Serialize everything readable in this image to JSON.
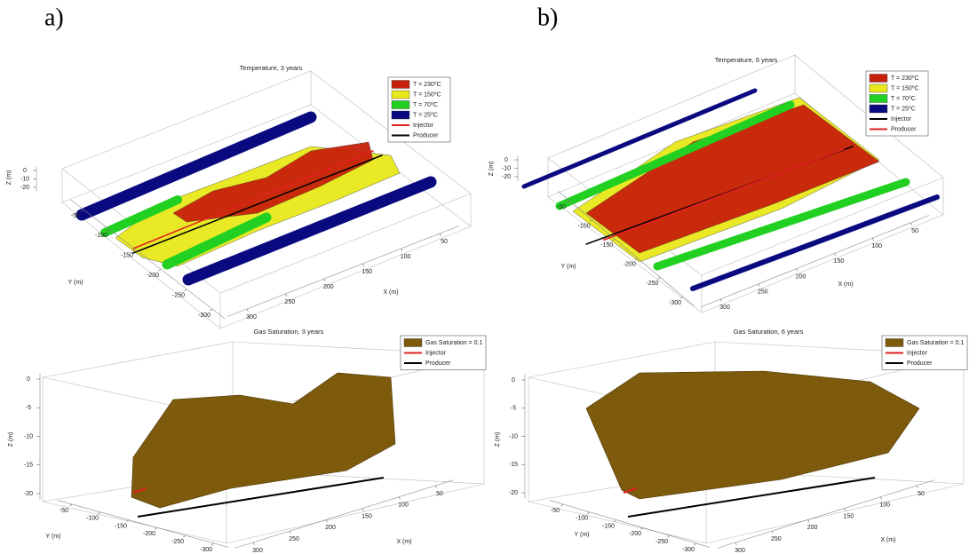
{
  "panel_labels": [
    "a)",
    "b)"
  ],
  "chart_data": [
    {
      "type": "isosurface",
      "title": "Temperature, 3 years",
      "xlabel": "X (m)",
      "ylabel": "Y (m)",
      "zlabel": "Z (m)",
      "xlim": [
        25,
        325
      ],
      "xticks": [
        50,
        100,
        150,
        200,
        250,
        300
      ],
      "ylim": [
        -325,
        -25
      ],
      "yticks": [
        -300,
        -250,
        -200,
        -150,
        -100,
        -50
      ],
      "zlim": [
        -25,
        5
      ],
      "zticks": [
        -20,
        -10,
        0
      ],
      "series": [
        {
          "name": "T = 230⁰C",
          "color": "#c8200a"
        },
        {
          "name": "T = 150⁰C",
          "color": "#e8e81a"
        },
        {
          "name": "T = 70⁰C",
          "color": "#22d022"
        },
        {
          "name": "T = 25⁰C",
          "color": "#0a0a80"
        },
        {
          "name": "Injector",
          "color": "#e02020"
        },
        {
          "name": "Producer",
          "color": "#000000"
        }
      ]
    },
    {
      "type": "isosurface",
      "title": "Temperature, 6 years",
      "xlabel": "X (m)",
      "ylabel": "Y (m)",
      "zlabel": "Z (m)",
      "xlim": [
        25,
        325
      ],
      "xticks": [
        50,
        100,
        150,
        200,
        250,
        300
      ],
      "ylim": [
        -325,
        -25
      ],
      "yticks": [
        -300,
        -250,
        -200,
        -150,
        -100,
        -50
      ],
      "zlim": [
        -25,
        5
      ],
      "zticks": [
        -20,
        -10,
        0
      ],
      "series": [
        {
          "name": "T = 230⁰C",
          "color": "#c8200a"
        },
        {
          "name": "T = 150⁰C",
          "color": "#e8e81a"
        },
        {
          "name": "T = 70⁰C",
          "color": "#22d022"
        },
        {
          "name": "T = 25⁰C",
          "color": "#0a0a80"
        },
        {
          "name": "Injector",
          "color": "#000000"
        },
        {
          "name": "Producer",
          "color": "#e02020"
        }
      ]
    },
    {
      "type": "isosurface",
      "title": "Gas Saturation, 3 years",
      "xlabel": "X (m)",
      "ylabel": "Y (m)",
      "zlabel": "Z (m)",
      "xlim": [
        25,
        325
      ],
      "xticks": [
        50,
        100,
        150,
        200,
        250,
        300
      ],
      "ylim": [
        -325,
        -25
      ],
      "yticks": [
        -300,
        -250,
        -200,
        -150,
        -100,
        -50
      ],
      "zlim": [
        -21,
        1
      ],
      "zticks": [
        -20,
        -15,
        -10,
        -5,
        0
      ],
      "series": [
        {
          "name": "Gas Saturation = 0.1",
          "color": "#7d5a0c"
        },
        {
          "name": "Injector",
          "color": "#e02020"
        },
        {
          "name": "Producer",
          "color": "#000000"
        }
      ]
    },
    {
      "type": "isosurface",
      "title": "Gas Saturation, 6 years",
      "xlabel": "X (m)",
      "ylabel": "Y (m)",
      "zlabel": "Z (m)",
      "xlim": [
        25,
        325
      ],
      "xticks": [
        50,
        100,
        150,
        200,
        250,
        300
      ],
      "ylim": [
        -325,
        -25
      ],
      "yticks": [
        -300,
        -250,
        -200,
        -150,
        -100,
        -50
      ],
      "zlim": [
        -21,
        1
      ],
      "zticks": [
        -20,
        -15,
        -10,
        -5,
        0
      ],
      "series": [
        {
          "name": "Gas Saturation = 0.1",
          "color": "#7d5a0c"
        },
        {
          "name": "Injector",
          "color": "#e02020"
        },
        {
          "name": "Producer",
          "color": "#000000"
        }
      ]
    }
  ]
}
